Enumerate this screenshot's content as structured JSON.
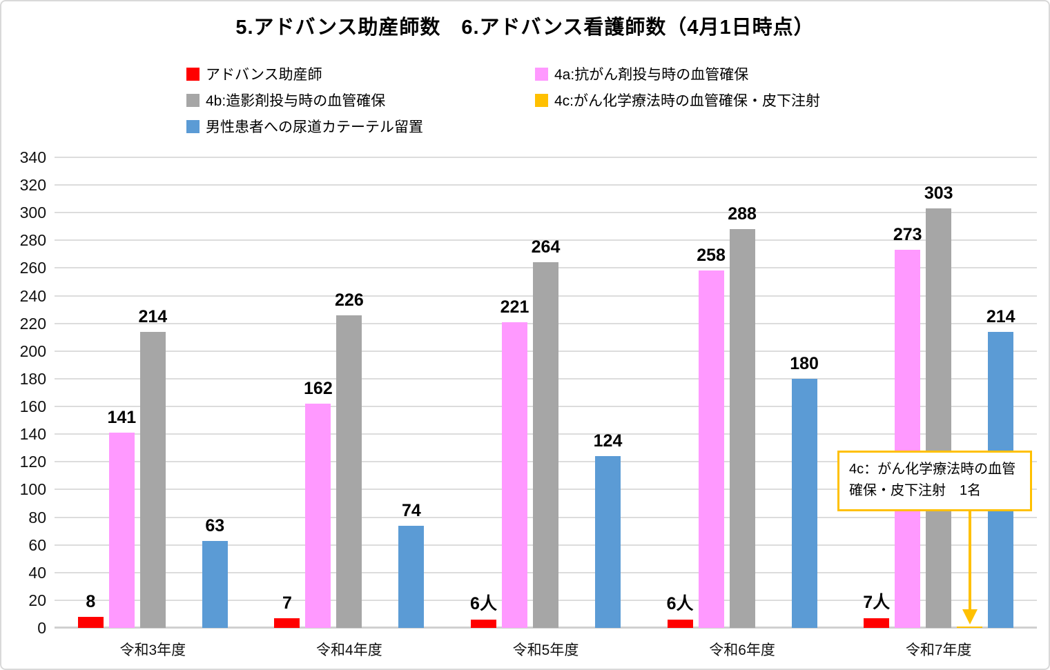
{
  "title": "5.アドバンス助産師数　6.アドバンス看護師数（4月1日時点）",
  "legend": {
    "items": [
      {
        "label": "アドバンス助産師",
        "color": "#FF0000"
      },
      {
        "label": "4a:抗がん剤投与時の血管確保",
        "color": "#FF99FF"
      },
      {
        "label": "4b:造影剤投与時の血管確保",
        "color": "#A6A6A6"
      },
      {
        "label": "4c:がん化学療法時の血管確保・皮下注射",
        "color": "#FFC000"
      },
      {
        "label": "男性患者への尿道カテーテル留置",
        "color": "#5B9BD5"
      }
    ]
  },
  "annotation": {
    "text": "4c：がん化学療法時の血管確保・皮下注射　1名",
    "border_color": "#FFC000",
    "arrow_color": "#FFC000"
  },
  "chart_data": {
    "type": "bar",
    "categories": [
      "令和3年度",
      "令和4年度",
      "令和5年度",
      "令和6年度",
      "令和7年度"
    ],
    "series": [
      {
        "name": "アドバンス助産師",
        "color": "#FF0000",
        "values": [
          8,
          7,
          6,
          6,
          7
        ],
        "labels": [
          "8",
          "7",
          "6人",
          "6人",
          "7人"
        ]
      },
      {
        "name": "4a:抗がん剤投与時の血管確保",
        "color": "#FF99FF",
        "values": [
          141,
          162,
          221,
          258,
          273
        ]
      },
      {
        "name": "4b:造影剤投与時の血管確保",
        "color": "#A6A6A6",
        "values": [
          214,
          226,
          264,
          288,
          303
        ]
      },
      {
        "name": "4c:がん化学療法時の血管確保・皮下注射",
        "color": "#FFC000",
        "values": [
          null,
          null,
          null,
          null,
          1
        ],
        "labels": [
          "",
          "",
          "",
          "",
          ""
        ]
      },
      {
        "name": "男性患者への尿道カテーテル留置",
        "color": "#5B9BD5",
        "values": [
          63,
          74,
          124,
          180,
          214
        ]
      }
    ],
    "ylabel": "",
    "xlabel": "",
    "ylim": [
      0,
      340
    ],
    "ytick_step": 20,
    "grid": true,
    "legend_position": "top",
    "annotation_target": {
      "series_index": 3,
      "category_index": 4,
      "value": 1
    }
  },
  "colors": {
    "gridline": "#DCDCDC",
    "baseline": "#D0D0D0",
    "text": "#000000"
  }
}
